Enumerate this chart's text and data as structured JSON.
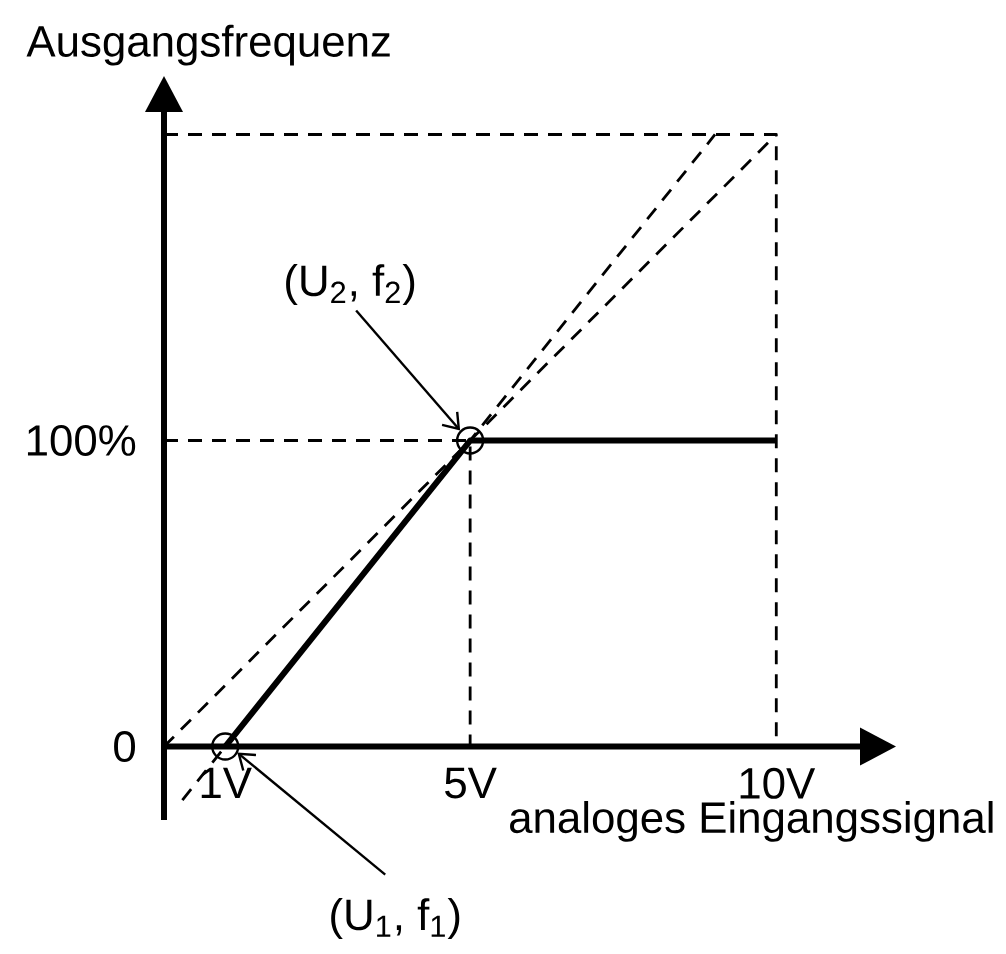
{
  "chart_data": {
    "type": "line",
    "xlabel": "analoges Eingangssignal",
    "ylabel": "Ausgangsfrequenz",
    "xlim": [
      0,
      11.4
    ],
    "ylim": [
      -24,
      208
    ],
    "xticks": [
      {
        "value": 1,
        "label": "1V"
      },
      {
        "value": 5,
        "label": "5V"
      },
      {
        "value": 10,
        "label": "10V"
      }
    ],
    "yticks": [
      0,
      {
        "value": 100,
        "label": "100%"
      }
    ],
    "series": [
      {
        "color": "#000000",
        "x": [
          0,
          5,
          5
        ],
        "values": [
          100,
          100,
          0
        ],
        "line_style": "dashed",
        "marker": "none"
      },
      {
        "color": "#000000",
        "x": [
          0,
          10,
          10
        ],
        "values": [
          200,
          200,
          0
        ],
        "line_style": "dashed",
        "marker": "none"
      },
      {
        "color": "#000000",
        "x": [
          0,
          10
        ],
        "values": [
          0,
          200
        ],
        "line_style": "dashed",
        "marker": "none"
      },
      {
        "color": "#000000",
        "x": [
          0.3,
          9
        ],
        "values": [
          -17.5,
          200
        ],
        "line_style": "dashed",
        "marker": "none"
      },
      {
        "color": "#000000",
        "x": [
          1,
          5,
          10
        ],
        "values": [
          0,
          100,
          100
        ],
        "line_style": "solid",
        "marker": "none"
      },
      {
        "type": "scatter",
        "color": "#000000",
        "x": [
          1,
          5
        ],
        "values": [
          0,
          100
        ],
        "marker": "circle"
      }
    ],
    "annotations": [
      {
        "text": "(U$_{2}$, f$_{2}$)",
        "x": 5,
        "y": 100
      },
      {
        "text": "(U$_{1}$, f$_{1}$)",
        "x": 1,
        "y": 0
      }
    ]
  }
}
